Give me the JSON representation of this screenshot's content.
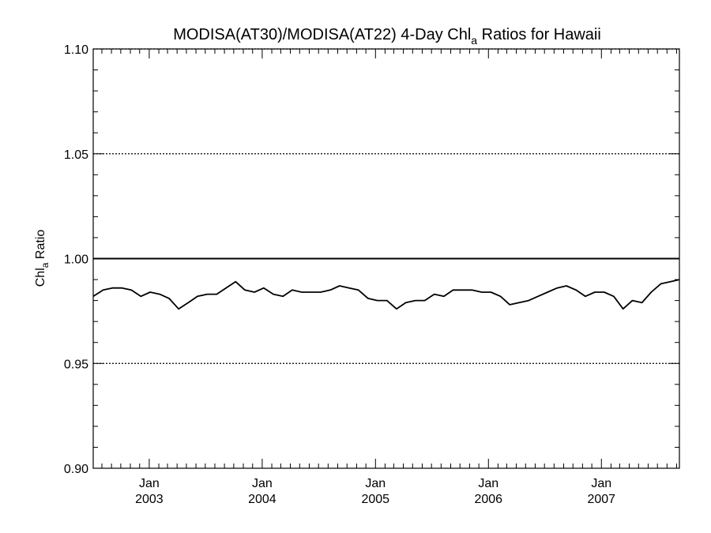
{
  "chart_data": {
    "type": "line",
    "title": {
      "main": "MODISA(AT30)/MODISA(AT22) 4-Day Chl",
      "subscript": "a",
      "tail": " Ratios for Hawaii"
    },
    "ylabel": {
      "main": "Chl",
      "subscript": "a",
      "tail": " Ratio"
    },
    "ylim": [
      0.9,
      1.1
    ],
    "yticks": [
      {
        "value": 0.9,
        "label": "0.90"
      },
      {
        "value": 0.95,
        "label": "0.95"
      },
      {
        "value": 1.0,
        "label": "1.00"
      },
      {
        "value": 1.05,
        "label": "1.05"
      },
      {
        "value": 1.1,
        "label": "1.10"
      }
    ],
    "xlim": [
      "2002-07-04",
      "2007-09-10"
    ],
    "xticks": [
      {
        "date": "2003-01-01",
        "month": "Jan",
        "year": "2003"
      },
      {
        "date": "2004-01-01",
        "month": "Jan",
        "year": "2004"
      },
      {
        "date": "2005-01-01",
        "month": "Jan",
        "year": "2005"
      },
      {
        "date": "2006-01-01",
        "month": "Jan",
        "year": "2006"
      },
      {
        "date": "2007-01-01",
        "month": "Jan",
        "year": "2007"
      }
    ],
    "reference_line": 1.0,
    "grid": "dotted horizontal at major y ticks",
    "series": [
      {
        "x": [
          "2002-07-04",
          "2002-08-05",
          "2002-09-04",
          "2002-10-05",
          "2002-11-04",
          "2002-12-05",
          "2003-01-04",
          "2003-02-04",
          "2003-03-06",
          "2003-04-06",
          "2003-05-07",
          "2003-06-06",
          "2003-07-07",
          "2003-08-07",
          "2003-09-06",
          "2003-10-07",
          "2003-11-06",
          "2003-12-07",
          "2004-01-06",
          "2004-02-06",
          "2004-03-08",
          "2004-04-07",
          "2004-05-08",
          "2004-06-07",
          "2004-07-08",
          "2004-08-08",
          "2004-09-07",
          "2004-10-08",
          "2004-11-07",
          "2004-12-08",
          "2005-01-07",
          "2005-02-07",
          "2005-03-10",
          "2005-04-09",
          "2005-05-10",
          "2005-06-09",
          "2005-07-10",
          "2005-08-10",
          "2005-09-09",
          "2005-10-10",
          "2005-11-09",
          "2005-12-10",
          "2006-01-09",
          "2006-02-09",
          "2006-03-11",
          "2006-04-10",
          "2006-05-11",
          "2006-06-10",
          "2006-07-11",
          "2006-08-11",
          "2006-09-10",
          "2006-10-11",
          "2006-11-10",
          "2006-12-11",
          "2007-01-10",
          "2007-02-10",
          "2007-03-12",
          "2007-04-11",
          "2007-05-12",
          "2007-06-11",
          "2007-07-12",
          "2007-08-12",
          "2007-09-10"
        ],
        "values": [
          0.982,
          0.985,
          0.986,
          0.986,
          0.985,
          0.982,
          0.984,
          0.983,
          0.981,
          0.976,
          0.979,
          0.982,
          0.983,
          0.983,
          0.986,
          0.989,
          0.985,
          0.984,
          0.986,
          0.983,
          0.982,
          0.985,
          0.984,
          0.984,
          0.984,
          0.985,
          0.987,
          0.986,
          0.985,
          0.981,
          0.98,
          0.98,
          0.976,
          0.979,
          0.98,
          0.98,
          0.983,
          0.982,
          0.985,
          0.985,
          0.985,
          0.984,
          0.984,
          0.982,
          0.978,
          0.979,
          0.98,
          0.982,
          0.984,
          0.986,
          0.987,
          0.985,
          0.982,
          0.984,
          0.984,
          0.982,
          0.976,
          0.98,
          0.979,
          0.984,
          0.988,
          0.989,
          0.99
        ]
      }
    ]
  }
}
